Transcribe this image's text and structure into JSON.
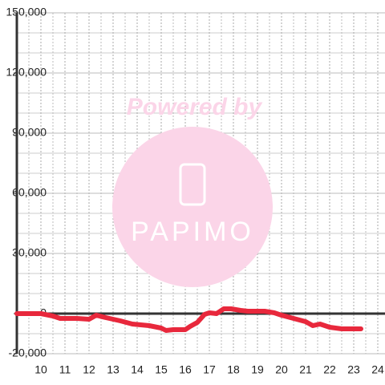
{
  "chart_data": {
    "type": "line",
    "watermark": {
      "line1": "Powered by",
      "line2": "PAPIMO"
    },
    "x": [
      9,
      10,
      10.5,
      10.8,
      11.5,
      12,
      12.3,
      12.7,
      13.3,
      13.8,
      14.5,
      15,
      15.2,
      15.5,
      16,
      16.2,
      16.5,
      16.8,
      17,
      17.3,
      17.6,
      17.9,
      18.3,
      18.6,
      19.3,
      19.7,
      20,
      20.5,
      21,
      21.3,
      21.6,
      22,
      22.5,
      23.3
    ],
    "values": [
      0,
      0,
      -1200,
      -2400,
      -2400,
      -2800,
      -800,
      -2000,
      -3600,
      -5200,
      -6000,
      -7200,
      -8400,
      -8000,
      -8000,
      -6400,
      -4400,
      -400,
      400,
      0,
      2400,
      2400,
      1600,
      1200,
      1200,
      400,
      -800,
      -2400,
      -4000,
      -6000,
      -5200,
      -6800,
      -7600,
      -7600
    ],
    "color": "#e8283c",
    "xlim": [
      9,
      24.3
    ],
    "ylim": [
      -20000,
      150000
    ],
    "xticks": [
      10,
      11,
      12,
      13,
      14,
      15,
      16,
      17,
      18,
      19,
      20,
      21,
      22,
      23,
      24
    ],
    "yticks": [
      {
        "value": -20000,
        "label": "-20,000"
      },
      0,
      {
        "value": 30000,
        "label": "30,000"
      },
      {
        "value": 60000,
        "label": "60,000"
      },
      {
        "value": 90000,
        "label": "90,000"
      },
      {
        "value": 120000,
        "label": "120,000"
      },
      {
        "value": 150000,
        "label": "150,000"
      }
    ],
    "grid": true
  }
}
